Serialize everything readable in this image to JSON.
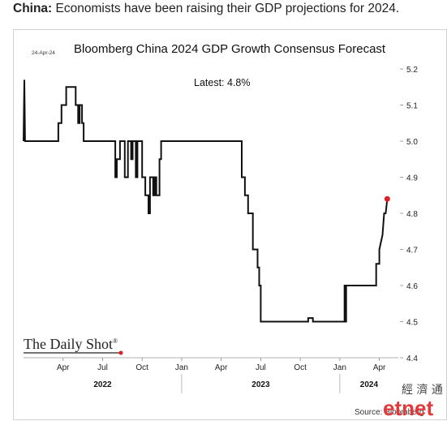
{
  "caption": {
    "bold": "China:",
    "text": " Economists have been raising their GDP projections for 2024."
  },
  "chart_data": {
    "type": "line",
    "title": "Bloomberg China 2024 GDP Growth Consensus Forecast",
    "date_stamp": "24-Apr-24",
    "annotation": "Latest:  4.8%",
    "ylim": [
      4.4,
      5.2
    ],
    "yticks": [
      "5.2",
      "5.1",
      "5.0",
      "4.9",
      "4.8",
      "4.7",
      "4.6",
      "4.5",
      "4.4"
    ],
    "x_month_labels": [
      "Apr",
      "Jul",
      "Oct",
      "Jan",
      "Apr",
      "Jul",
      "Oct",
      "Jan",
      "Apr"
    ],
    "x_month_positions": [
      2022.25,
      2022.5,
      2022.75,
      2023.0,
      2023.25,
      2023.5,
      2023.75,
      2024.0,
      2024.25
    ],
    "x_years": [
      "2022",
      "2023",
      "2024"
    ],
    "xlim": [
      2022.0,
      2024.37
    ],
    "grid": false,
    "series": [
      {
        "points": [
          [
            2022.0,
            5.0
          ],
          [
            2022.005,
            5.17
          ],
          [
            2022.01,
            5.0
          ],
          [
            2022.22,
            5.0
          ],
          [
            2022.22,
            5.05
          ],
          [
            2022.24,
            5.05
          ],
          [
            2022.24,
            5.1
          ],
          [
            2022.27,
            5.1
          ],
          [
            2022.27,
            5.15
          ],
          [
            2022.33,
            5.15
          ],
          [
            2022.33,
            5.1
          ],
          [
            2022.345,
            5.1
          ],
          [
            2022.345,
            5.05
          ],
          [
            2022.355,
            5.05
          ],
          [
            2022.355,
            5.1
          ],
          [
            2022.37,
            5.1
          ],
          [
            2022.37,
            5.05
          ],
          [
            2022.38,
            5.05
          ],
          [
            2022.38,
            5.0
          ],
          [
            2022.58,
            5.0
          ],
          [
            2022.58,
            4.9
          ],
          [
            2022.59,
            4.9
          ],
          [
            2022.59,
            4.95
          ],
          [
            2022.61,
            4.95
          ],
          [
            2022.61,
            5.0
          ],
          [
            2022.64,
            5.0
          ],
          [
            2022.64,
            4.9
          ],
          [
            2022.66,
            4.9
          ],
          [
            2022.66,
            5.0
          ],
          [
            2022.68,
            5.0
          ],
          [
            2022.68,
            4.95
          ],
          [
            2022.69,
            4.95
          ],
          [
            2022.69,
            5.0
          ],
          [
            2022.71,
            5.0
          ],
          [
            2022.71,
            4.9
          ],
          [
            2022.72,
            4.9
          ],
          [
            2022.72,
            5.0
          ],
          [
            2022.75,
            5.0
          ],
          [
            2022.75,
            4.9
          ],
          [
            2022.77,
            4.9
          ],
          [
            2022.77,
            4.85
          ],
          [
            2022.79,
            4.85
          ],
          [
            2022.79,
            4.8
          ],
          [
            2022.8,
            4.8
          ],
          [
            2022.8,
            4.9
          ],
          [
            2022.82,
            4.9
          ],
          [
            2022.82,
            4.85
          ],
          [
            2022.83,
            4.85
          ],
          [
            2022.83,
            4.9
          ],
          [
            2022.84,
            4.9
          ],
          [
            2022.84,
            4.85
          ],
          [
            2022.85,
            4.85
          ],
          [
            2022.85,
            4.85
          ],
          [
            2022.86,
            4.85
          ],
          [
            2022.86,
            4.95
          ],
          [
            2022.87,
            4.95
          ],
          [
            2022.87,
            5.0
          ],
          [
            2023.38,
            5.0
          ],
          [
            2023.38,
            4.9
          ],
          [
            2023.4,
            4.9
          ],
          [
            2023.4,
            4.85
          ],
          [
            2023.42,
            4.85
          ],
          [
            2023.42,
            4.8
          ],
          [
            2023.45,
            4.8
          ],
          [
            2023.45,
            4.7
          ],
          [
            2023.48,
            4.7
          ],
          [
            2023.48,
            4.65
          ],
          [
            2023.49,
            4.65
          ],
          [
            2023.49,
            4.6
          ],
          [
            2023.5,
            4.6
          ],
          [
            2023.5,
            4.5
          ],
          [
            2023.8,
            4.5
          ],
          [
            2023.8,
            4.51
          ],
          [
            2023.83,
            4.51
          ],
          [
            2023.83,
            4.5
          ],
          [
            2024.03,
            4.5
          ],
          [
            2024.03,
            4.6
          ],
          [
            2024.035,
            4.6
          ],
          [
            2024.035,
            4.5
          ],
          [
            2024.04,
            4.5
          ],
          [
            2024.04,
            4.6
          ],
          [
            2024.23,
            4.6
          ],
          [
            2024.23,
            4.66
          ],
          [
            2024.25,
            4.66
          ],
          [
            2024.25,
            4.7
          ],
          [
            2024.27,
            4.74
          ],
          [
            2024.28,
            4.8
          ],
          [
            2024.29,
            4.8
          ],
          [
            2024.3,
            4.84
          ]
        ]
      }
    ],
    "latest_point": [
      2024.3,
      4.84
    ],
    "colors": {
      "line": "#111111",
      "marker": "#e02020"
    }
  },
  "brand": {
    "name": "The Daily Shot",
    "mark": "®"
  },
  "source": "Source: Bloomberg",
  "watermark": {
    "cn": "經 濟 通",
    "en": "etnet"
  }
}
